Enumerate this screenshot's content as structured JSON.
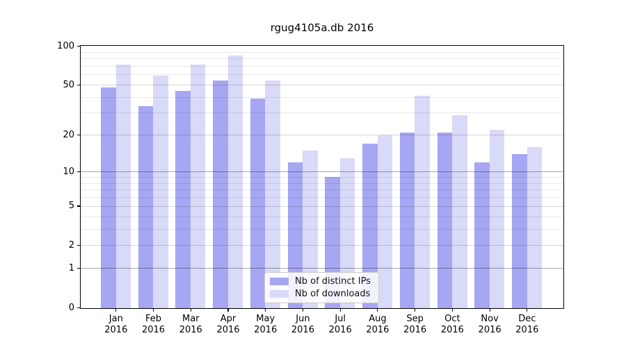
{
  "chart_data": {
    "type": "bar",
    "title": "rgug4105a.db 2016",
    "categories": [
      "Jan",
      "Feb",
      "Mar",
      "Apr",
      "May",
      "Jun",
      "Jul",
      "Aug",
      "Sep",
      "Oct",
      "Nov",
      "Dec"
    ],
    "year_label": "2016",
    "series": [
      {
        "name": "Nb of distinct IPs",
        "color": "#a6a6f2",
        "values": [
          48,
          34,
          45,
          54,
          39,
          12,
          9,
          17,
          21,
          21,
          12,
          14
        ]
      },
      {
        "name": "Nb of downloads",
        "color": "#d9d9f8",
        "values": [
          72,
          59,
          72,
          85,
          54,
          15,
          13,
          20,
          41,
          29,
          22,
          16
        ]
      }
    ],
    "y_axis": {
      "scale": "log10(1+v)",
      "range": [
        0,
        100
      ],
      "ticks": [
        0,
        1,
        2,
        5,
        10,
        20,
        50,
        100
      ],
      "major_gridlines": [
        2,
        5,
        20,
        50
      ],
      "emphasized_gridlines": [
        1,
        10
      ],
      "minor_gridlines": [
        3,
        4,
        6,
        7,
        8,
        9,
        30,
        40,
        60,
        70,
        80,
        90
      ]
    },
    "legend": {
      "entries": [
        "Nb of distinct IPs",
        "Nb of downloads"
      ],
      "position": "bottom-center"
    },
    "colors": {
      "distinct_ips_bar": "#a6a6f2",
      "downloads_bar": "#d9d9f8",
      "grid_emphasized": "#a9a9a9",
      "grid_major": "#d5d5d5",
      "grid_minor": "#e9e9e9",
      "axis": "#000000"
    }
  }
}
